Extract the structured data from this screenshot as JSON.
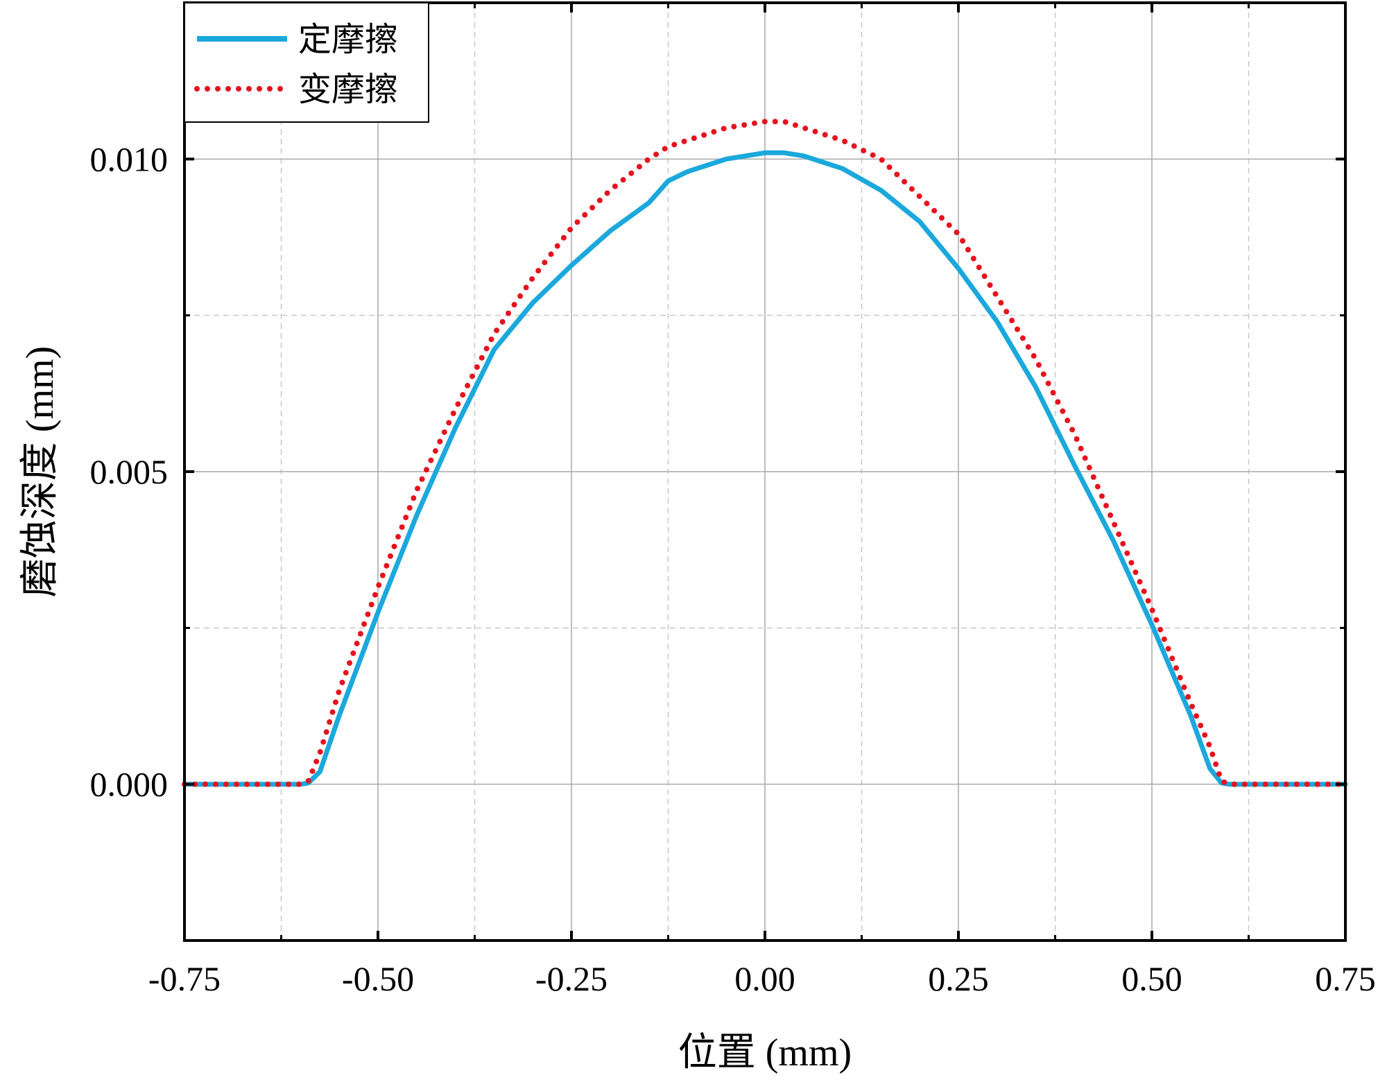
{
  "chart_data": {
    "type": "line",
    "title": "",
    "xlabel": "位置 (mm)",
    "ylabel": "磨蚀深度 (mm)",
    "xlim": [
      -0.75,
      0.75
    ],
    "ylim": [
      -0.0025,
      0.0125
    ],
    "xticks": [
      -0.75,
      -0.5,
      -0.25,
      0.0,
      0.25,
      0.5,
      0.75
    ],
    "xtick_labels": [
      "-0.75",
      "-0.50",
      "-0.25",
      "0.00",
      "0.25",
      "0.50",
      "0.75"
    ],
    "yticks": [
      0.0,
      0.005,
      0.01
    ],
    "ytick_labels": [
      "0.000",
      "0.005",
      "0.010"
    ],
    "grid": true,
    "legend_position": "top-left",
    "series": [
      {
        "name": "定摩擦",
        "style": "solid",
        "color": "#1ba8dc",
        "x": [
          -0.75,
          -0.6,
          -0.59,
          -0.575,
          -0.55,
          -0.5,
          -0.45,
          -0.4,
          -0.35,
          -0.3,
          -0.25,
          -0.2,
          -0.15,
          -0.125,
          -0.1,
          -0.05,
          0.0,
          0.025,
          0.05,
          0.1,
          0.15,
          0.2,
          0.25,
          0.3,
          0.35,
          0.4,
          0.45,
          0.5,
          0.55,
          0.575,
          0.59,
          0.6,
          0.75
        ],
        "y": [
          0.0,
          0.0,
          2e-05,
          0.0002,
          0.0011,
          0.00275,
          0.0043,
          0.0057,
          0.00695,
          0.0077,
          0.0083,
          0.00885,
          0.0093,
          0.00965,
          0.0098,
          0.01,
          0.0101,
          0.0101,
          0.01005,
          0.00985,
          0.0095,
          0.009,
          0.00825,
          0.0074,
          0.00635,
          0.0051,
          0.0039,
          0.00255,
          0.0011,
          0.00025,
          2e-05,
          0.0,
          0.0
        ]
      },
      {
        "name": "变摩擦",
        "style": "dotted",
        "color": "#e5131e",
        "x": [
          -0.75,
          -0.6,
          -0.59,
          -0.575,
          -0.55,
          -0.5,
          -0.45,
          -0.4,
          -0.35,
          -0.3,
          -0.25,
          -0.2,
          -0.15,
          -0.125,
          -0.1,
          -0.05,
          0.0,
          0.025,
          0.05,
          0.1,
          0.15,
          0.2,
          0.25,
          0.3,
          0.35,
          0.4,
          0.45,
          0.5,
          0.55,
          0.575,
          0.59,
          0.6,
          0.75
        ],
        "y": [
          0.0,
          0.0,
          5e-05,
          0.0005,
          0.0015,
          0.00315,
          0.0047,
          0.006,
          0.0072,
          0.0081,
          0.0089,
          0.0095,
          0.01,
          0.0102,
          0.0103,
          0.0105,
          0.0106,
          0.0106,
          0.0105,
          0.0103,
          0.01,
          0.0094,
          0.0088,
          0.0078,
          0.0068,
          0.0056,
          0.0042,
          0.0028,
          0.0013,
          0.0006,
          5e-05,
          0.0,
          0.0
        ]
      }
    ]
  }
}
